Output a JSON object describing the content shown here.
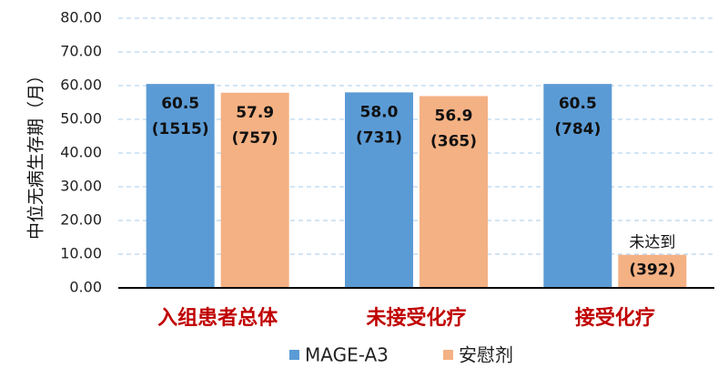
{
  "chart_data": {
    "type": "bar",
    "y_label": "中位无病生存期（月）",
    "categories": [
      "入组患者总体",
      "未接受化疗",
      "接受化疗"
    ],
    "series": [
      {
        "name": "MAGE-A3",
        "color": "#5b9bd5",
        "values": [
          60.5,
          58.0,
          60.5
        ],
        "value_labels": [
          "60.5",
          "58.0",
          "60.5"
        ],
        "n_labels": [
          "(1515)",
          "(731)",
          "(784)"
        ]
      },
      {
        "name": "安慰剂",
        "color": "#f4b183",
        "values": [
          57.9,
          56.9,
          9.8
        ],
        "value_labels": [
          "57.9",
          "56.9",
          "未达到"
        ],
        "n_labels": [
          "(757)",
          "(365)",
          "(392)"
        ]
      }
    ],
    "ylim": [
      0,
      80
    ],
    "yticks": [
      {
        "value": 0,
        "label": "0.00"
      },
      {
        "value": 10,
        "label": "10.00"
      },
      {
        "value": 20,
        "label": "20.00"
      },
      {
        "value": 30,
        "label": "30.00"
      },
      {
        "value": 40,
        "label": "40.00"
      },
      {
        "value": 50,
        "label": "50.00"
      },
      {
        "value": 60,
        "label": "60.00"
      },
      {
        "value": 70,
        "label": "70.00"
      },
      {
        "value": 80,
        "label": "80.00"
      }
    ],
    "grid": true,
    "legend": "bottom"
  }
}
